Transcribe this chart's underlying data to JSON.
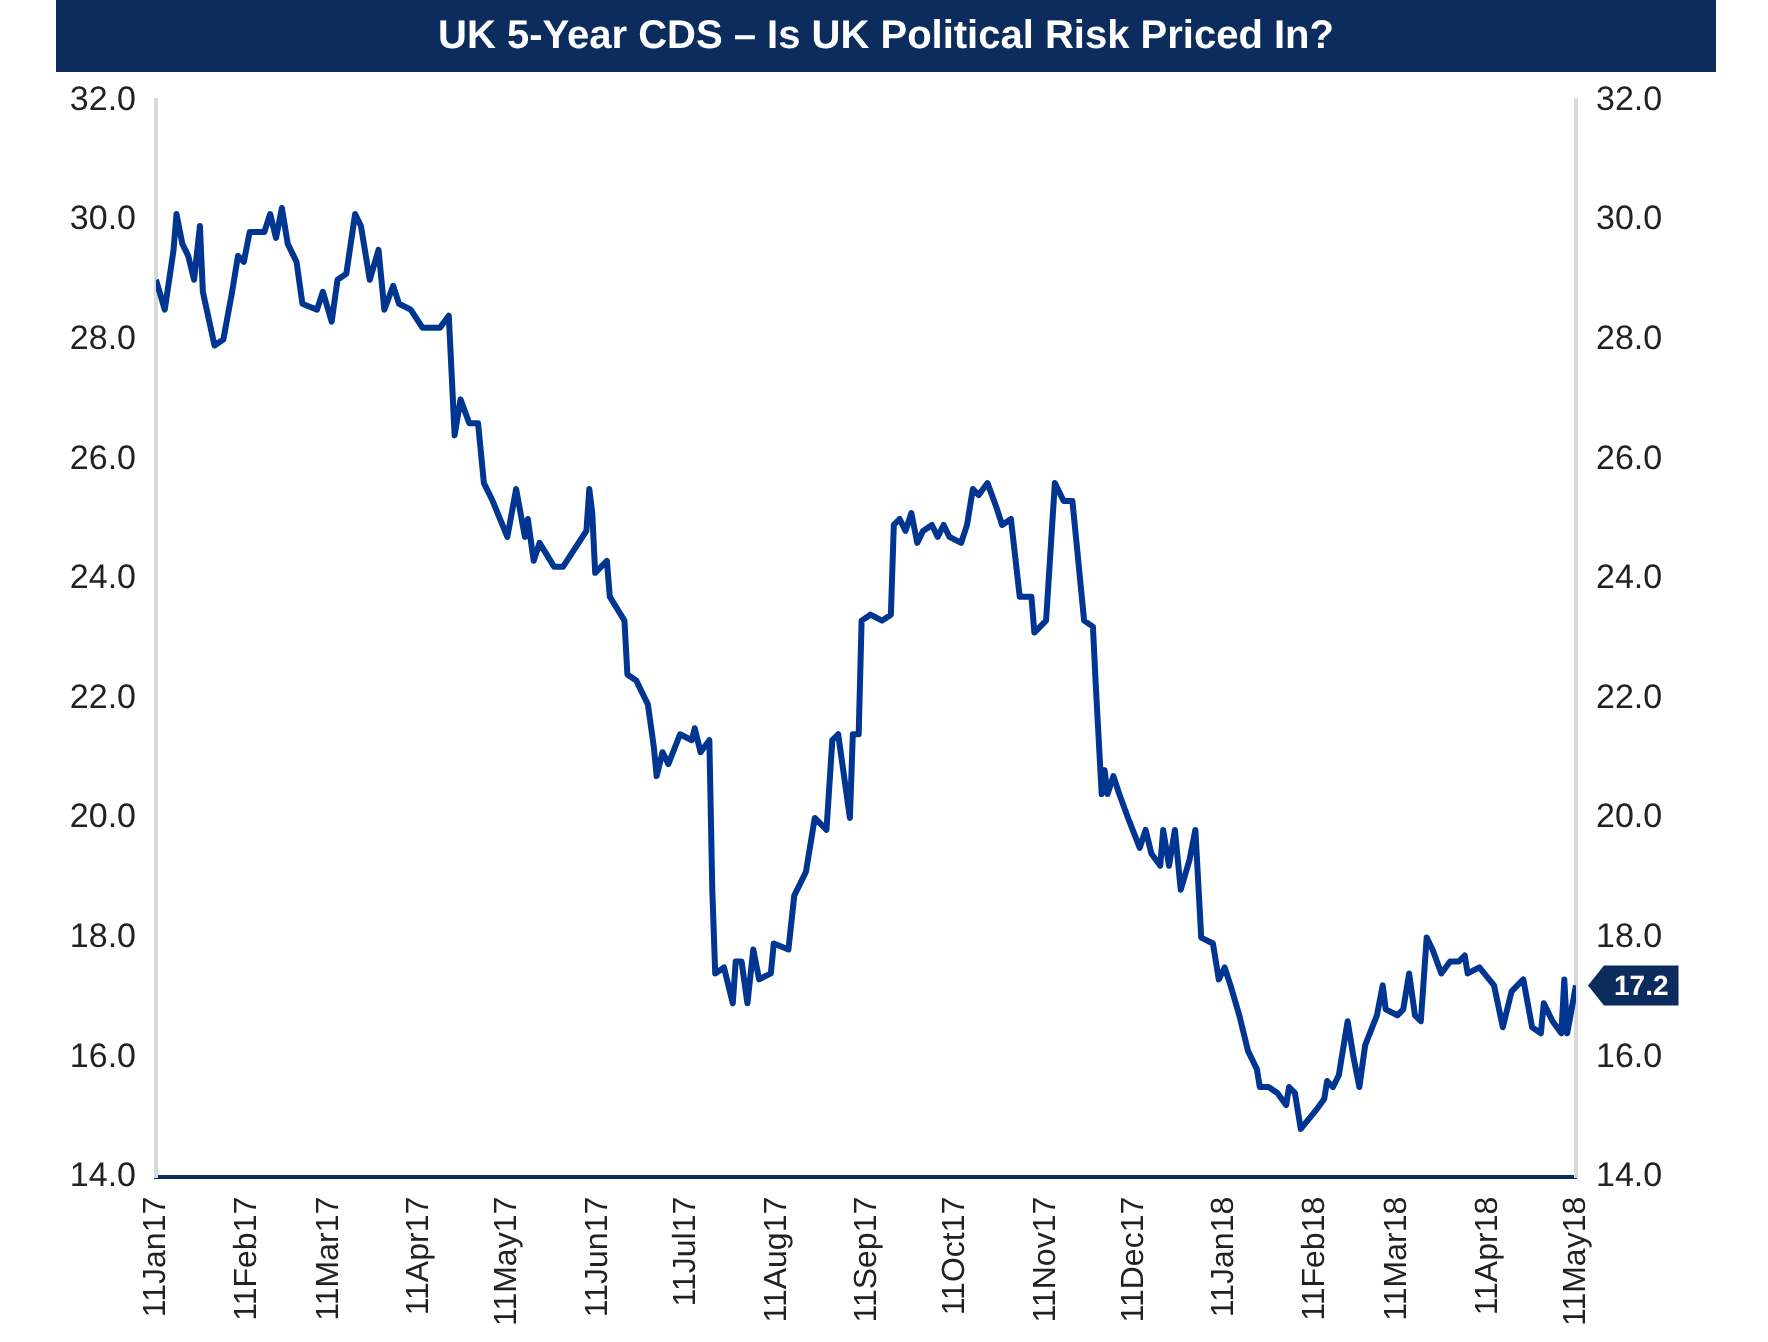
{
  "chart_data": {
    "type": "line",
    "title": "UK 5-Year CDS – Is UK Political Risk Priced In?",
    "x": [
      "2017-01-11",
      "2017-01-14",
      "2017-01-17",
      "2017-01-18",
      "2017-01-20",
      "2017-01-22",
      "2017-01-24",
      "2017-01-26",
      "2017-01-27",
      "2017-01-31",
      "2017-02-03",
      "2017-02-06",
      "2017-02-08",
      "2017-02-10",
      "2017-02-12",
      "2017-02-17",
      "2017-02-19",
      "2017-02-21",
      "2017-02-23",
      "2017-02-25",
      "2017-02-28",
      "2017-03-02",
      "2017-03-07",
      "2017-03-09",
      "2017-03-12",
      "2017-03-14",
      "2017-03-17",
      "2017-03-20",
      "2017-03-22",
      "2017-03-25",
      "2017-03-28",
      "2017-03-30",
      "2017-04-02",
      "2017-04-04",
      "2017-04-08",
      "2017-04-12",
      "2017-04-18",
      "2017-04-21",
      "2017-04-23",
      "2017-04-25",
      "2017-04-28",
      "2017-05-01",
      "2017-05-03",
      "2017-05-06",
      "2017-05-11",
      "2017-05-14",
      "2017-05-17",
      "2017-05-18",
      "2017-05-20",
      "2017-05-22",
      "2017-05-27",
      "2017-05-30",
      "2017-06-07",
      "2017-06-08",
      "2017-06-09",
      "2017-06-10",
      "2017-06-14",
      "2017-06-15",
      "2017-06-20",
      "2017-06-21",
      "2017-06-24",
      "2017-06-28",
      "2017-06-30",
      "2017-07-01",
      "2017-07-03",
      "2017-07-05",
      "2017-07-09",
      "2017-07-13",
      "2017-07-14",
      "2017-07-16",
      "2017-07-19",
      "2017-07-20",
      "2017-07-21",
      "2017-07-24",
      "2017-07-27",
      "2017-07-28",
      "2017-07-30",
      "2017-08-01",
      "2017-08-03",
      "2017-08-05",
      "2017-08-09",
      "2017-08-10",
      "2017-08-15",
      "2017-08-17",
      "2017-08-21",
      "2017-08-24",
      "2017-08-28",
      "2017-08-30",
      "2017-09-01",
      "2017-09-05",
      "2017-09-06",
      "2017-09-08",
      "2017-09-09",
      "2017-09-12",
      "2017-09-16",
      "2017-09-19",
      "2017-09-20",
      "2017-09-22",
      "2017-09-24",
      "2017-09-26",
      "2017-09-28",
      "2017-09-30",
      "2017-10-03",
      "2017-10-05",
      "2017-10-07",
      "2017-10-09",
      "2017-10-13",
      "2017-10-15",
      "2017-10-17",
      "2017-10-19",
      "2017-10-22",
      "2017-10-25",
      "2017-10-27",
      "2017-10-30",
      "2017-11-02",
      "2017-11-06",
      "2017-11-07",
      "2017-11-11",
      "2017-11-14",
      "2017-11-17",
      "2017-11-20",
      "2017-11-24",
      "2017-11-27",
      "2017-11-28",
      "2017-11-30",
      "2017-12-01",
      "2017-12-02",
      "2017-12-04",
      "2017-12-06",
      "2017-12-09",
      "2017-12-13",
      "2017-12-15",
      "2017-12-17",
      "2017-12-20",
      "2017-12-21",
      "2017-12-23",
      "2017-12-25",
      "2017-12-27",
      "2017-12-30",
      "2018-01-01",
      "2018-01-03",
      "2018-01-07",
      "2018-01-09",
      "2018-01-11",
      "2018-01-13",
      "2018-01-16",
      "2018-01-19",
      "2018-01-22",
      "2018-01-23",
      "2018-01-26",
      "2018-01-29",
      "2018-02-01",
      "2018-02-02",
      "2018-02-04",
      "2018-02-06",
      "2018-02-11",
      "2018-02-14",
      "2018-02-15",
      "2018-02-17",
      "2018-02-19",
      "2018-02-22",
      "2018-02-24",
      "2018-02-26",
      "2018-02-28",
      "2018-03-04",
      "2018-03-06",
      "2018-03-07",
      "2018-03-11",
      "2018-03-13",
      "2018-03-15",
      "2018-03-17",
      "2018-03-19",
      "2018-03-21",
      "2018-03-23",
      "2018-03-26",
      "2018-03-29",
      "2018-04-01",
      "2018-04-03",
      "2018-04-04",
      "2018-04-08",
      "2018-04-13",
      "2018-04-16",
      "2018-04-19",
      "2018-04-23",
      "2018-04-26",
      "2018-04-29",
      "2018-04-30",
      "2018-05-03",
      "2018-05-06",
      "2018-05-07",
      "2018-05-08",
      "2018-05-11"
    ],
    "series": [
      {
        "color": "#003591",
        "values": [
          29.0,
          28.5,
          29.5,
          30.1,
          29.6,
          29.4,
          29.0,
          29.9,
          28.8,
          27.9,
          28.0,
          28.8,
          29.4,
          29.3,
          29.8,
          29.8,
          30.1,
          29.7,
          30.2,
          29.6,
          29.3,
          28.6,
          28.5,
          28.8,
          28.3,
          29.0,
          29.1,
          30.1,
          29.9,
          29.0,
          29.5,
          28.5,
          28.9,
          28.6,
          28.5,
          28.2,
          28.2,
          28.4,
          26.4,
          27.0,
          26.6,
          26.6,
          25.6,
          25.3,
          24.7,
          25.5,
          24.7,
          25.0,
          24.3,
          24.6,
          24.2,
          24.2,
          24.8,
          25.5,
          25.1,
          24.1,
          24.3,
          23.7,
          23.3,
          22.4,
          22.3,
          21.9,
          21.2,
          20.7,
          21.1,
          20.9,
          21.4,
          21.3,
          21.5,
          21.1,
          21.3,
          18.8,
          17.4,
          17.5,
          16.9,
          17.6,
          17.6,
          16.9,
          17.8,
          17.3,
          17.4,
          17.9,
          17.8,
          18.7,
          19.1,
          20.0,
          19.8,
          21.3,
          21.4,
          20.0,
          21.4,
          21.4,
          23.3,
          23.4,
          23.3,
          23.4,
          24.9,
          25.0,
          24.8,
          25.1,
          24.6,
          24.8,
          24.9,
          24.7,
          24.9,
          24.7,
          24.6,
          24.9,
          25.5,
          25.4,
          25.6,
          25.2,
          24.9,
          25.0,
          23.7,
          23.7,
          23.1,
          23.3,
          25.6,
          25.3,
          25.3,
          23.3,
          23.2,
          22.2,
          20.4,
          20.8,
          20.4,
          20.7,
          20.4,
          20.0,
          19.5,
          19.8,
          19.4,
          19.2,
          19.8,
          19.2,
          19.8,
          18.8,
          19.3,
          19.8,
          18.0,
          17.9,
          17.3,
          17.5,
          17.2,
          16.7,
          16.1,
          15.8,
          15.5,
          15.5,
          15.4,
          15.2,
          15.5,
          15.4,
          14.8,
          15.1,
          15.3,
          15.6,
          15.5,
          15.7,
          16.6,
          16.0,
          15.5,
          16.2,
          16.7,
          17.2,
          16.8,
          16.7,
          16.8,
          17.4,
          16.7,
          16.6,
          18.0,
          17.8,
          17.4,
          17.6,
          17.6,
          17.7,
          17.4,
          17.5,
          17.2,
          16.5,
          17.1,
          17.3,
          16.5,
          16.4,
          16.9,
          16.6,
          16.4,
          17.3,
          16.4,
          17.2
        ]
      }
    ],
    "xlim": [
      "2017-01-11",
      "2018-05-11"
    ],
    "xticks": [
      {
        "value": "2017-01-11",
        "label": "11Jan17"
      },
      {
        "value": "2017-02-11",
        "label": "11Feb17"
      },
      {
        "value": "2017-03-11",
        "label": "11Mar17"
      },
      {
        "value": "2017-04-11",
        "label": "11Apr17"
      },
      {
        "value": "2017-05-11",
        "label": "11May17"
      },
      {
        "value": "2017-06-11",
        "label": "11Jun17"
      },
      {
        "value": "2017-07-11",
        "label": "11Jul17"
      },
      {
        "value": "2017-08-11",
        "label": "11Aug17"
      },
      {
        "value": "2017-09-11",
        "label": "11Sep17"
      },
      {
        "value": "2017-10-11",
        "label": "11Oct17"
      },
      {
        "value": "2017-11-11",
        "label": "11Nov17"
      },
      {
        "value": "2017-12-11",
        "label": "11Dec17"
      },
      {
        "value": "2018-01-11",
        "label": "11Jan18"
      },
      {
        "value": "2018-02-11",
        "label": "11Feb18"
      },
      {
        "value": "2018-03-11",
        "label": "11Mar18"
      },
      {
        "value": "2018-04-11",
        "label": "11Apr18"
      },
      {
        "value": "2018-05-11",
        "label": "11May18"
      }
    ],
    "ylim": [
      14,
      32
    ],
    "yticks": [
      {
        "value": 14,
        "label": "14.0"
      },
      {
        "value": 16,
        "label": "16.0"
      },
      {
        "value": 18,
        "label": "18.0"
      },
      {
        "value": 20,
        "label": "20.0"
      },
      {
        "value": 22,
        "label": "22.0"
      },
      {
        "value": 24,
        "label": "24.0"
      },
      {
        "value": 26,
        "label": "26.0"
      },
      {
        "value": 28,
        "label": "28.0"
      },
      {
        "value": 30,
        "label": "30.0"
      },
      {
        "value": 32,
        "label": "32.0"
      }
    ],
    "y2lim": [
      14,
      32
    ],
    "y2ticks": [
      {
        "value": 14,
        "label": "14.0"
      },
      {
        "value": 16,
        "label": "16.0"
      },
      {
        "value": 18,
        "label": "18.0"
      },
      {
        "value": 20,
        "label": "20.0"
      },
      {
        "value": 22,
        "label": "22.0"
      },
      {
        "value": 24,
        "label": "24.0"
      },
      {
        "value": 26,
        "label": "26.0"
      },
      {
        "value": 28,
        "label": "28.0"
      },
      {
        "value": 30,
        "label": "30.0"
      },
      {
        "value": 32,
        "label": "32.0"
      }
    ],
    "annotations": [
      {
        "text": "17.2",
        "x": "2018-05-11",
        "y": 17.2
      }
    ],
    "grid": false,
    "legend": false
  }
}
